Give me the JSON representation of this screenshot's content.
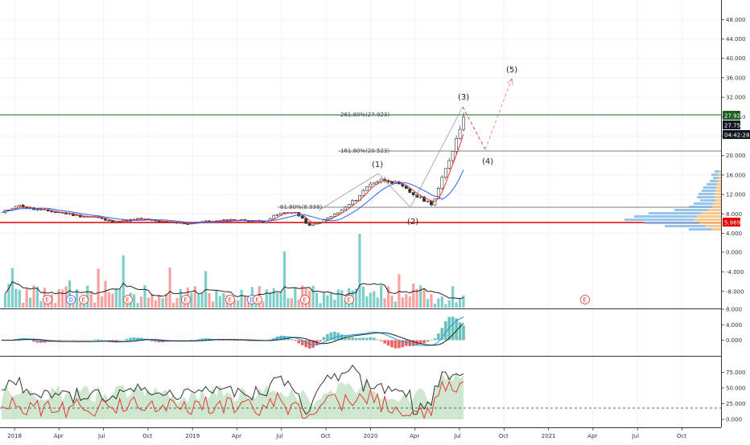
{
  "colors": {
    "up": "#26a69a",
    "down": "#ef5350",
    "volume_up": "#7fcfc9",
    "volume_down": "#f5a3a1",
    "ma_blue": "#2962ff",
    "ma_red": "#e53935",
    "ma_black": "#222222",
    "fib_line": "#555555",
    "resistance_line": "#1b5e20",
    "support_line": "#e00000",
    "wave_red": "#e05050",
    "wave_black": "#333333",
    "macd_blue": "#2196f3",
    "macd_signal": "#222222",
    "rsi_fill": "#a5d6a7",
    "grid": "#f0f3fa",
    "price_tag_green": "#1b5e20",
    "price_tag_black": "#131722",
    "price_tag_red": "#e00000"
  },
  "price_axis": {
    "ticks": [
      "48.000",
      "44.000",
      "40.000",
      "36.000",
      "32.000",
      "28.000",
      "24.000",
      "20.000",
      "16.000",
      "12.000",
      "8.000",
      "4.000"
    ],
    "tags": {
      "resistance": "27.926",
      "last": "27.750",
      "countdown": "04:42:28",
      "support": "5.969"
    }
  },
  "volume_axis": {
    "ticks": [
      "0.000",
      "-4.000",
      "-8.000"
    ]
  },
  "macd_axis": {
    "ticks": [
      "8.000",
      "4.000",
      "0.000"
    ]
  },
  "rsi_axis": {
    "ticks": [
      "75.000",
      "50.000",
      "25.000",
      "0.000"
    ]
  },
  "time_axis": {
    "labels": [
      "2018",
      "Apr",
      "Jul",
      "Oct",
      "2019",
      "Apr",
      "Jul",
      "Oct",
      "2020",
      "Apr",
      "Jul",
      "Oct",
      "2021",
      "Apr",
      "Jul",
      "Oct"
    ]
  },
  "annotations": {
    "fib_upper": "261.80%(27.923)",
    "fib_mid": "161.80%(20.523)",
    "fib_low": "61.80%(8.938)",
    "waves": [
      "(1)",
      "(2)",
      "(3)",
      "(4)",
      "(5)"
    ],
    "earnings": "E",
    "dividend": "D"
  },
  "chart_data": {
    "type": "line",
    "subtype": "candlestick",
    "title": "",
    "xlabel": "",
    "ylabel": "",
    "ylim": [
      4,
      48
    ],
    "grid": true,
    "x": [
      "2018-01",
      "2018-02",
      "2018-03",
      "2018-04",
      "2018-05",
      "2018-06",
      "2018-07",
      "2018-08",
      "2018-09",
      "2018-10",
      "2018-11",
      "2018-12",
      "2019-01",
      "2019-02",
      "2019-03",
      "2019-04",
      "2019-05",
      "2019-06",
      "2019-07",
      "2019-08",
      "2019-09",
      "2019-10",
      "2019-11",
      "2019-12",
      "2020-01",
      "2020-02",
      "2020-03",
      "2020-04",
      "2020-05",
      "2020-06",
      "2020-07"
    ],
    "series": [
      {
        "values": [
          8.2,
          9.8,
          9.0,
          8.6,
          8.2,
          7.6,
          7.4,
          6.5,
          6.6,
          7.0,
          6.5,
          6.2,
          6.0,
          6.4,
          6.5,
          6.8,
          6.6,
          6.4,
          8.0,
          8.5,
          5.5,
          6.8,
          8.5,
          11.0,
          14.5,
          15.2,
          13.5,
          11.5,
          10.0,
          18.5,
          27.9
        ]
      }
    ],
    "price_levels": [
      {
        "label": "261.80%(27.923)",
        "value": 27.923
      },
      {
        "label": "161.80%(20.523)",
        "value": 20.523
      },
      {
        "label": "61.80%(8.938)",
        "value": 8.938
      },
      {
        "label": "5.969",
        "value": 5.969
      }
    ],
    "wave_projection": [
      {
        "label": "(3)",
        "x": "2020-07",
        "y": 28.7
      },
      {
        "label": "(4)",
        "x": "2020-09",
        "y": 20.8
      },
      {
        "label": "(5)",
        "x": "2020-10",
        "y": 35.2
      }
    ]
  }
}
